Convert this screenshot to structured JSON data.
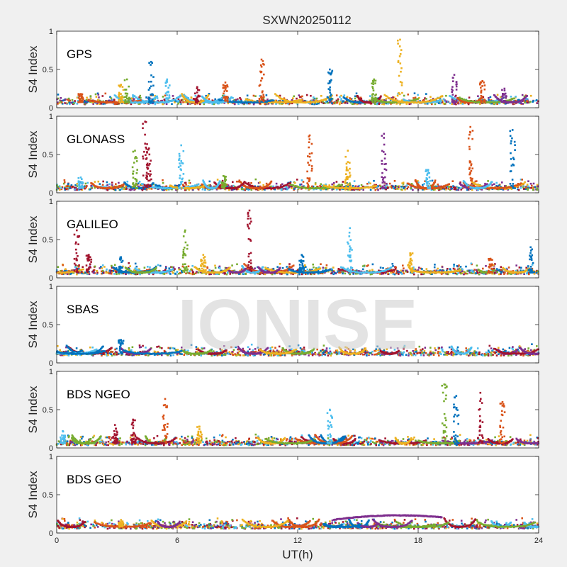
{
  "figure": {
    "title": "SXWN20250112",
    "xlabel": "UT(h)",
    "watermark": "IONISE",
    "background_color": "#f0f0f0",
    "axes_color": "#ffffff"
  },
  "colors": [
    "#0072BD",
    "#D95319",
    "#EDB120",
    "#7E2F8E",
    "#77AC30",
    "#4DBEEE",
    "#A2142F"
  ],
  "chart_data": [
    {
      "type": "scatter",
      "name": "GPS",
      "ylabel": "S4 Index",
      "xlim": [
        0,
        24
      ],
      "ylim": [
        0,
        1
      ],
      "yticks": [
        0,
        0.5,
        1
      ],
      "ytick_labels": [
        "0",
        "0.5",
        "1"
      ],
      "xticks": [
        0,
        6,
        12,
        18,
        24
      ],
      "xtick_labels": [],
      "baseline": 0.07,
      "spikes": [
        {
          "x": 1.2,
          "y": 0.18,
          "c": 1
        },
        {
          "x": 3.2,
          "y": 0.3,
          "c": 2
        },
        {
          "x": 3.5,
          "y": 0.37,
          "c": 4
        },
        {
          "x": 4.7,
          "y": 0.6,
          "c": 0
        },
        {
          "x": 5.5,
          "y": 0.37,
          "c": 5
        },
        {
          "x": 7.0,
          "y": 0.27,
          "c": 6
        },
        {
          "x": 8.4,
          "y": 0.33,
          "c": 1
        },
        {
          "x": 10.2,
          "y": 0.63,
          "c": 1
        },
        {
          "x": 13.6,
          "y": 0.5,
          "c": 0
        },
        {
          "x": 15.8,
          "y": 0.37,
          "c": 4
        },
        {
          "x": 17.1,
          "y": 0.89,
          "c": 2
        },
        {
          "x": 19.8,
          "y": 0.43,
          "c": 3
        },
        {
          "x": 21.2,
          "y": 0.35,
          "c": 1
        },
        {
          "x": 22.3,
          "y": 0.25,
          "c": 3
        }
      ]
    },
    {
      "type": "scatter",
      "name": "GLONASS",
      "ylabel": "S4 Index",
      "xlim": [
        0,
        24
      ],
      "ylim": [
        0,
        1
      ],
      "yticks": [
        0,
        0.5,
        1
      ],
      "ytick_labels": [
        "0",
        "0.5",
        "1"
      ],
      "xticks": [
        0,
        6,
        12,
        18,
        24
      ],
      "xtick_labels": [],
      "baseline": 0.06,
      "spikes": [
        {
          "x": 1.2,
          "y": 0.2,
          "c": 5
        },
        {
          "x": 3.9,
          "y": 0.55,
          "c": 4
        },
        {
          "x": 4.4,
          "y": 0.93,
          "c": 6
        },
        {
          "x": 4.6,
          "y": 0.58,
          "c": 6
        },
        {
          "x": 6.2,
          "y": 0.62,
          "c": 5
        },
        {
          "x": 8.3,
          "y": 0.22,
          "c": 4
        },
        {
          "x": 12.6,
          "y": 0.75,
          "c": 1
        },
        {
          "x": 14.5,
          "y": 0.55,
          "c": 2
        },
        {
          "x": 16.3,
          "y": 0.77,
          "c": 3
        },
        {
          "x": 18.5,
          "y": 0.3,
          "c": 5
        },
        {
          "x": 20.6,
          "y": 0.86,
          "c": 1
        },
        {
          "x": 22.7,
          "y": 0.82,
          "c": 0
        }
      ]
    },
    {
      "type": "scatter",
      "name": "GALILEO",
      "ylabel": "S4 Index",
      "xlim": [
        0,
        24
      ],
      "ylim": [
        0,
        1
      ],
      "yticks": [
        0,
        0.5,
        1
      ],
      "ytick_labels": [
        "0",
        "0.5",
        "1"
      ],
      "xticks": [
        0,
        6,
        12,
        18,
        24
      ],
      "xtick_labels": [],
      "baseline": 0.07,
      "spikes": [
        {
          "x": 1.0,
          "y": 0.62,
          "c": 6
        },
        {
          "x": 1.6,
          "y": 0.3,
          "c": 6
        },
        {
          "x": 3.2,
          "y": 0.27,
          "c": 0
        },
        {
          "x": 6.4,
          "y": 0.62,
          "c": 4
        },
        {
          "x": 7.3,
          "y": 0.3,
          "c": 2
        },
        {
          "x": 9.6,
          "y": 0.88,
          "c": 6
        },
        {
          "x": 12.2,
          "y": 0.3,
          "c": 0
        },
        {
          "x": 14.6,
          "y": 0.65,
          "c": 5
        },
        {
          "x": 17.6,
          "y": 0.32,
          "c": 2
        },
        {
          "x": 21.6,
          "y": 0.25,
          "c": 1
        },
        {
          "x": 23.6,
          "y": 0.4,
          "c": 0
        }
      ]
    },
    {
      "type": "scatter",
      "name": "SBAS",
      "ylabel": "S4 Index",
      "xlim": [
        0,
        24
      ],
      "ylim": [
        0,
        1
      ],
      "yticks": [
        0,
        0.5,
        1
      ],
      "ytick_labels": [
        "0",
        "0.5",
        "1"
      ],
      "xticks": [
        0,
        6,
        12,
        18,
        24
      ],
      "xtick_labels": [],
      "baseline": 0.12,
      "spikes": [
        {
          "x": 3.2,
          "y": 0.3,
          "c": 0
        }
      ]
    },
    {
      "type": "scatter",
      "name": "BDS NGEO",
      "ylabel": "S4 Index",
      "xlim": [
        0,
        24
      ],
      "ylim": [
        0,
        1
      ],
      "yticks": [
        0,
        0.5,
        1
      ],
      "ytick_labels": [
        "0",
        "0.5",
        "1"
      ],
      "xticks": [
        0,
        6,
        12,
        18,
        24
      ],
      "xtick_labels": [],
      "baseline": 0.06,
      "spikes": [
        {
          "x": 0.3,
          "y": 0.22,
          "c": 5
        },
        {
          "x": 2.9,
          "y": 0.3,
          "c": 6
        },
        {
          "x": 3.8,
          "y": 0.37,
          "c": 6
        },
        {
          "x": 5.4,
          "y": 0.64,
          "c": 1
        },
        {
          "x": 7.1,
          "y": 0.28,
          "c": 2
        },
        {
          "x": 13.6,
          "y": 0.5,
          "c": 5
        },
        {
          "x": 19.3,
          "y": 0.83,
          "c": 4
        },
        {
          "x": 19.9,
          "y": 0.68,
          "c": 0
        },
        {
          "x": 21.1,
          "y": 0.72,
          "c": 6
        },
        {
          "x": 22.2,
          "y": 0.6,
          "c": 1
        }
      ]
    },
    {
      "type": "scatter",
      "name": "BDS GEO",
      "ylabel": "S4 Index",
      "xlim": [
        0,
        24
      ],
      "ylim": [
        0,
        1
      ],
      "yticks": [
        0,
        0.5,
        1
      ],
      "ytick_labels": [
        "0",
        "0.5",
        "1"
      ],
      "xticks": [
        0,
        6,
        12,
        18,
        24
      ],
      "xtick_labels": [
        "0",
        "6",
        "12",
        "18",
        "24"
      ],
      "baseline": 0.08,
      "spikes": [
        {
          "x": 3.2,
          "y": 0.17,
          "c": 2
        }
      ],
      "arc": {
        "x_start": 13.8,
        "x_end": 19.2,
        "y_peak": 0.23,
        "c": 3
      }
    }
  ]
}
